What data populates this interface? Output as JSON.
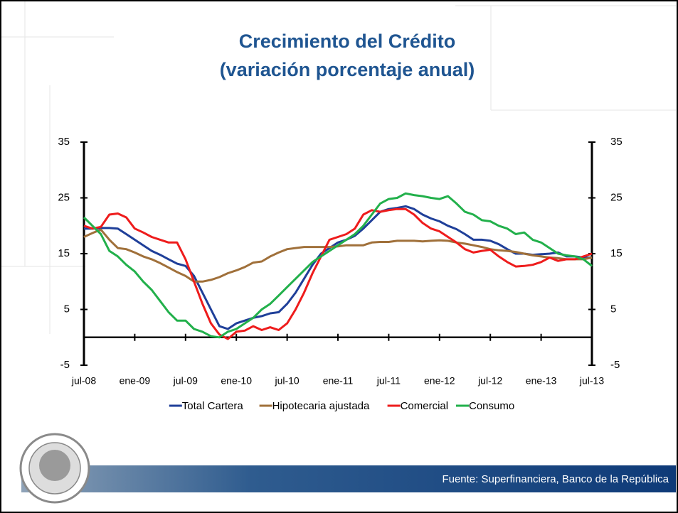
{
  "chart_data": {
    "type": "line",
    "title": "Crecimiento del Crédito",
    "subtitle": "(variación porcentaje anual)",
    "source": "Fuente: Superfinanciera, Banco de la República",
    "categories": [
      "jul-08",
      null,
      null,
      null,
      null,
      null,
      "ene-09",
      null,
      null,
      null,
      null,
      null,
      "jul-09",
      null,
      null,
      null,
      null,
      null,
      "ene-10",
      null,
      null,
      null,
      null,
      null,
      "jul-10",
      null,
      null,
      null,
      null,
      null,
      "ene-11",
      null,
      null,
      null,
      null,
      null,
      "jul-11",
      null,
      null,
      null,
      null,
      null,
      "ene-12",
      null,
      null,
      null,
      null,
      null,
      "jul-12",
      null,
      null,
      null,
      null,
      null,
      "ene-13",
      null,
      null,
      null,
      null,
      null,
      "jul-13"
    ],
    "series": [
      {
        "name": "Total Cartera",
        "color": "#1f3f99",
        "values": [
          19.5,
          19.5,
          19.6,
          19.6,
          19.5,
          18.5,
          17.5,
          16.5,
          15.5,
          14.8,
          14,
          13.2,
          12.8,
          11,
          8,
          5,
          2,
          1.5,
          2.5,
          3,
          3.5,
          3.8,
          4.3,
          4.5,
          6,
          8,
          10.5,
          13,
          15,
          16,
          17,
          17.5,
          18.2,
          19.5,
          21,
          22.5,
          23,
          23.2,
          23.5,
          23,
          22,
          21.3,
          20.8,
          20,
          19.4,
          18.5,
          17.5,
          17.5,
          17.3,
          16.7,
          15.8,
          15,
          15,
          14.8,
          14.9,
          15,
          15.2,
          14.5,
          14.5,
          14.3,
          14.3
        ]
      },
      {
        "name": "Hipotecaria ajustada",
        "color": "#a0703a",
        "values": [
          18,
          18.7,
          19.3,
          17.5,
          16,
          15.8,
          15.2,
          14.5,
          14,
          13.3,
          12.5,
          11.7,
          11,
          10,
          10,
          10.3,
          10.8,
          11.5,
          12,
          12.6,
          13.4,
          13.6,
          14.5,
          15.2,
          15.8,
          16,
          16.2,
          16.2,
          16.2,
          16.2,
          16.3,
          16.5,
          16.5,
          16.5,
          17,
          17.1,
          17.1,
          17.3,
          17.3,
          17.3,
          17.2,
          17.3,
          17.4,
          17.3,
          17,
          16.8,
          16.5,
          16.2,
          15.8,
          15.6,
          15.5,
          15.3,
          15,
          14.7,
          14.5,
          14.3,
          14.2,
          14,
          14,
          14,
          14.3
        ]
      },
      {
        "name": "Comercial",
        "color": "#ee1c1c",
        "values": [
          20,
          19.5,
          19.8,
          22,
          22.2,
          21.5,
          19.5,
          18.8,
          18,
          17.5,
          17,
          17,
          14,
          10,
          6,
          2.5,
          0.5,
          -0.3,
          1,
          1.2,
          2,
          1.3,
          1.8,
          1.3,
          2.5,
          5,
          8,
          11.5,
          14.5,
          17.5,
          18,
          18.5,
          19.5,
          22,
          22.8,
          22.5,
          22.8,
          23,
          23,
          22,
          20.5,
          19.5,
          19,
          18,
          17,
          15.8,
          15.2,
          15.5,
          15.7,
          14.5,
          13.5,
          12.7,
          12.8,
          13,
          13.5,
          14.3,
          13.7,
          14,
          14,
          14.5,
          15
        ]
      },
      {
        "name": "Consumo",
        "color": "#22b04b",
        "values": [
          21.5,
          20,
          18.5,
          15.5,
          14.5,
          13,
          11.8,
          10,
          8.5,
          6.5,
          4.5,
          3,
          3,
          1.5,
          1,
          0.2,
          0,
          1,
          1.5,
          2.5,
          3.5,
          5,
          6,
          7.5,
          9,
          10.5,
          12,
          13.5,
          14.5,
          15.5,
          16.5,
          17.5,
          18.5,
          20,
          22,
          24,
          24.8,
          25,
          25.8,
          25.5,
          25.3,
          25,
          24.8,
          25.3,
          24,
          22.5,
          22,
          21,
          20.8,
          20,
          19.5,
          18.5,
          18.8,
          17.5,
          17,
          16,
          15,
          14.7,
          14.5,
          14,
          12.8
        ]
      }
    ],
    "ylim": [
      -5,
      35
    ],
    "yticks": [
      -5,
      5,
      15,
      25,
      35
    ],
    "y2lim": [
      -5,
      35
    ],
    "y2ticks": [
      -5,
      5,
      15,
      25,
      35
    ],
    "legend": "bottom"
  }
}
